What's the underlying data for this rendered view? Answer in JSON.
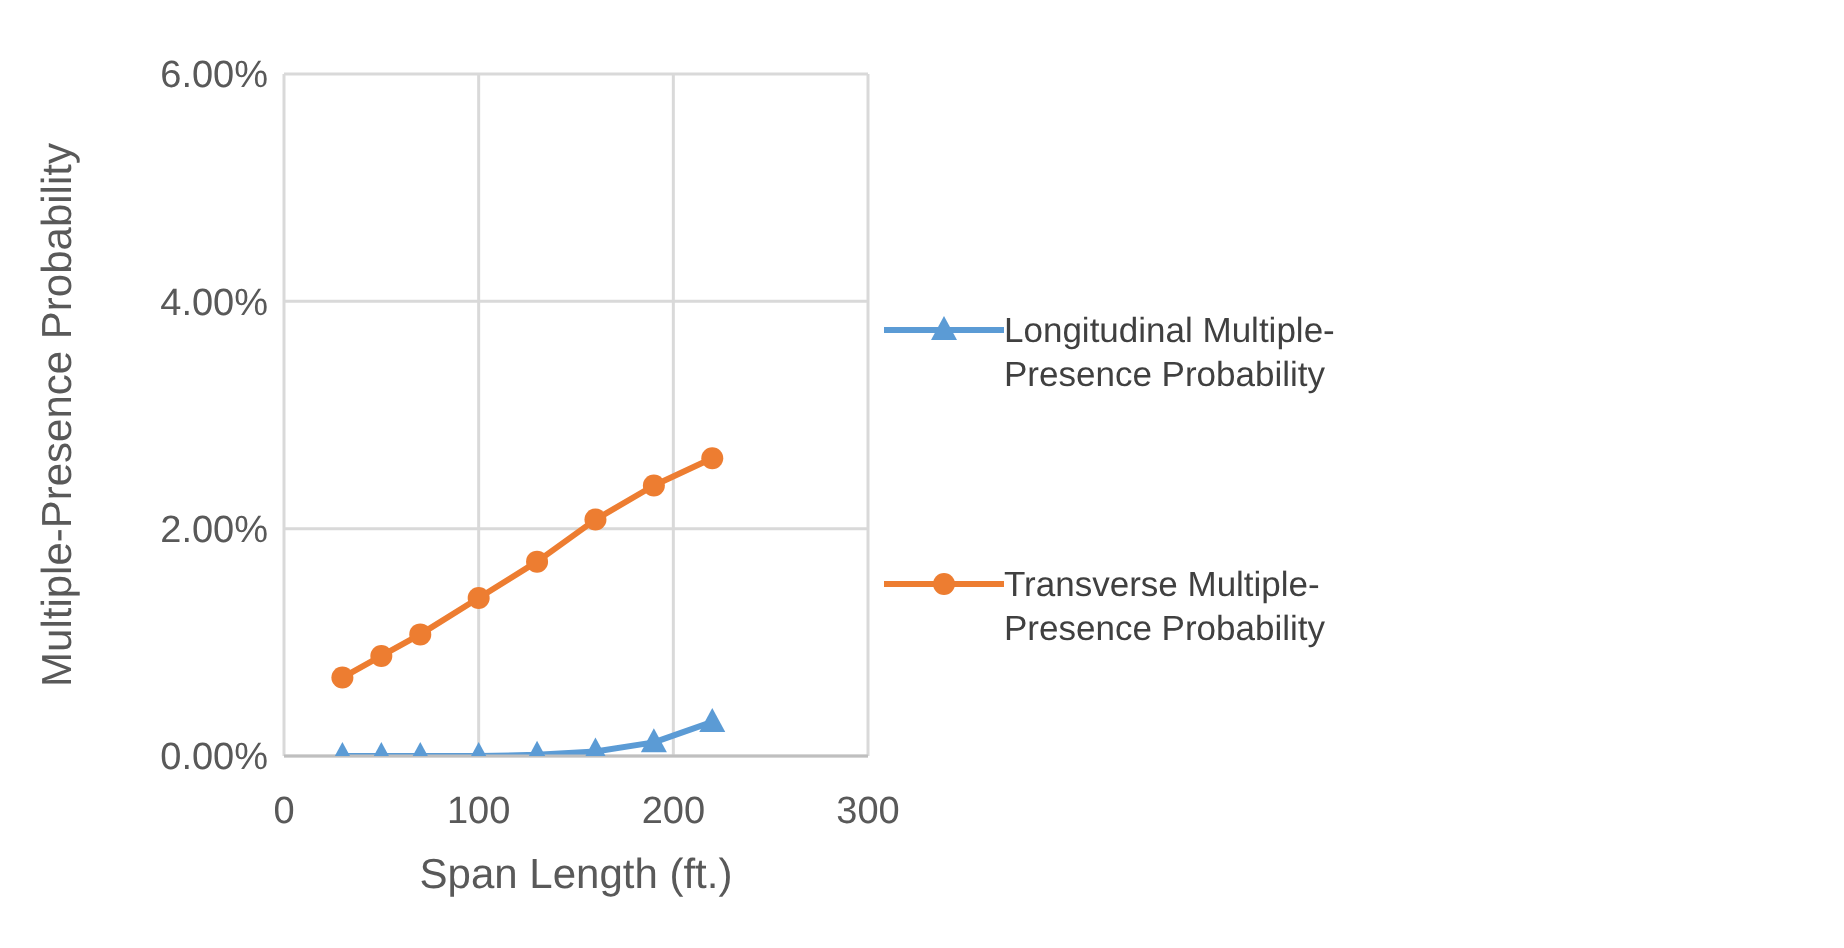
{
  "chart_data": {
    "type": "line",
    "xlabel": "Span Length (ft.)",
    "ylabel": "Multiple-Presence Probability",
    "xlim": [
      0,
      300
    ],
    "xticks": [
      0,
      100,
      200,
      300
    ],
    "ylim": [
      0,
      6
    ],
    "yticks": [
      {
        "value": 0,
        "label": "0.00%"
      },
      {
        "value": 2,
        "label": "2.00%"
      },
      {
        "value": 4,
        "label": "4.00%"
      },
      {
        "value": 6,
        "label": "6.00%"
      }
    ],
    "grid": true,
    "legend": "right",
    "line_style": "solid",
    "x": [
      30,
      50,
      70,
      100,
      130,
      160,
      190,
      220
    ],
    "series": [
      {
        "name": "Longitudinal Multiple-Presence Probability",
        "color": "#5b9bd5",
        "marker": "triangle",
        "values": [
          0,
          0,
          0,
          0,
          0.01,
          0.04,
          0.12,
          0.3
        ]
      },
      {
        "name": "Transverse Multiple-Presence Probability",
        "color": "#ed7d31",
        "marker": "circle",
        "values": [
          0.69,
          0.88,
          1.07,
          1.39,
          1.71,
          2.08,
          2.38,
          2.62
        ]
      }
    ]
  }
}
